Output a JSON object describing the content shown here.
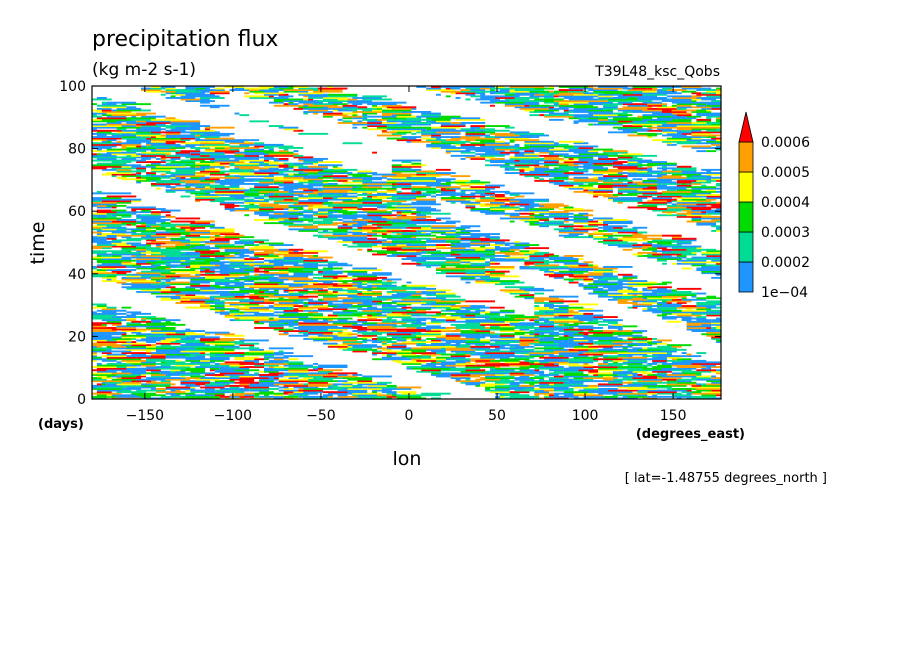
{
  "chart_data": {
    "type": "heatmap",
    "title": "precipitation flux",
    "units": "(kg m-2 s-1)",
    "experiment": "T39L48_ksc_Qobs",
    "xlabel": "lon",
    "xunits": "(degrees_east)",
    "ylabel": "time",
    "yunits": "(days)",
    "xlim": [
      -180,
      177.1875
    ],
    "ylim": [
      0,
      100
    ],
    "xticks": [
      -150,
      -100,
      -50,
      0,
      50,
      100,
      150
    ],
    "xtick_labels": [
      "-150",
      "-100",
      "-50",
      "0",
      "50",
      "100",
      "150"
    ],
    "yticks": [
      0,
      20,
      40,
      60,
      80,
      100
    ],
    "ytick_labels": [
      "0",
      "20",
      "40",
      "60",
      "80",
      "100"
    ],
    "footnote": "[ lat=-1.48755 degrees_north ]",
    "colorbar": {
      "levels": [
        0.0001,
        0.0002,
        0.0003,
        0.0004,
        0.0005,
        0.0006
      ],
      "labels": [
        "1e-04",
        "0.0002",
        "0.0003",
        "0.0004",
        "0.0005",
        "0.0006"
      ],
      "colors": [
        "#1e96ff",
        "#00dc96",
        "#00dc00",
        "#ffff00",
        "#ffa000",
        "#ff0000"
      ],
      "extend": "max"
    },
    "pattern": {
      "description_units": "data",
      "westward_bands": [
        {
          "lon0": -180,
          "t0": 35,
          "lon1": 40,
          "t1": 0
        },
        {
          "lon0": -100,
          "t0": 95,
          "lon1": 177,
          "t1": 50
        },
        {
          "lon0": -30,
          "t0": 100,
          "lon1": 177,
          "t1": 75
        },
        {
          "lon0": -180,
          "t0": 70,
          "lon1": 60,
          "t1": 30
        },
        {
          "lon0": 20,
          "t0": 60,
          "lon1": 177,
          "t1": 35
        },
        {
          "lon0": -180,
          "t0": 100,
          "lon1": -20,
          "t1": 75
        },
        {
          "lon0": 60,
          "t0": 40,
          "lon1": 177,
          "t1": 15
        }
      ]
    }
  }
}
